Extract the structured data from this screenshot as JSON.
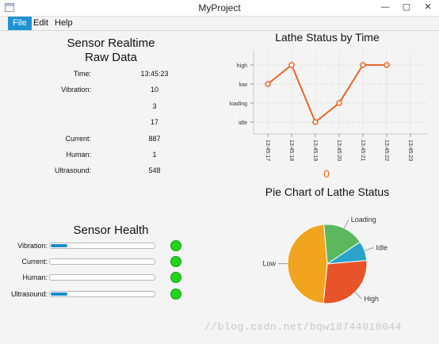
{
  "window": {
    "title": "MyProject",
    "minimize": "—",
    "maximize": "▢",
    "close": "✕"
  },
  "menu": [
    "File",
    "Edit",
    "Help"
  ],
  "raw": {
    "title_line1": "Sensor Realtime",
    "title_line2": "Raw Data",
    "rows": [
      {
        "label": "Time:",
        "value": "13:45:23"
      },
      {
        "label": "Vibration:",
        "value": "10"
      },
      {
        "label": "",
        "value": "3"
      },
      {
        "label": "",
        "value": "17"
      },
      {
        "label": "Current:",
        "value": "887"
      },
      {
        "label": "Human:",
        "value": "1"
      },
      {
        "label": "Ultrasound:",
        "value": "548"
      }
    ]
  },
  "health": {
    "title": "Sensor Health",
    "items": [
      {
        "label": "Vibration:",
        "level": 0.16,
        "status_color": "#22d41c"
      },
      {
        "label": "Current:",
        "level": 0,
        "status_color": "#22d41c"
      },
      {
        "label": "Human:",
        "level": 0,
        "status_color": "#22d41c"
      },
      {
        "label": "Ultrasound:",
        "level": 0.16,
        "status_color": "#22d41c"
      }
    ]
  },
  "chart_data": [
    {
      "type": "line",
      "title": "Lathe Status by Time",
      "y_categories": [
        "idle",
        "loading",
        "low",
        "high"
      ],
      "x_ticks": [
        "13:45:17",
        "13:45:18",
        "13:45:19",
        "13:45:20",
        "13:45:21",
        "13:45:22",
        "13:45:23"
      ],
      "points": [
        {
          "x": "13:45:17",
          "y": "low"
        },
        {
          "x": "13:45:18",
          "y": "high"
        },
        {
          "x": "13:45:19",
          "y": "idle"
        },
        {
          "x": "13:45:20",
          "y": "loading"
        },
        {
          "x": "13:45:21",
          "y": "high"
        },
        {
          "x": "13:45:22",
          "y": "high"
        }
      ],
      "line_color": "#e8642a",
      "grid": true,
      "legend_value": "0"
    },
    {
      "type": "pie",
      "title": "Pie Chart of Lathe Status",
      "slices": [
        {
          "label": "Loading",
          "value": 17,
          "color": "#5cb85c"
        },
        {
          "label": "Idle",
          "value": 8,
          "color": "#2aa3c8"
        },
        {
          "label": "High",
          "value": 28,
          "color": "#e8542a"
        },
        {
          "label": "Low",
          "value": 47,
          "color": "#f0a420"
        }
      ]
    }
  ],
  "watermark": "//blog.csdn.net/bqw18744018044"
}
